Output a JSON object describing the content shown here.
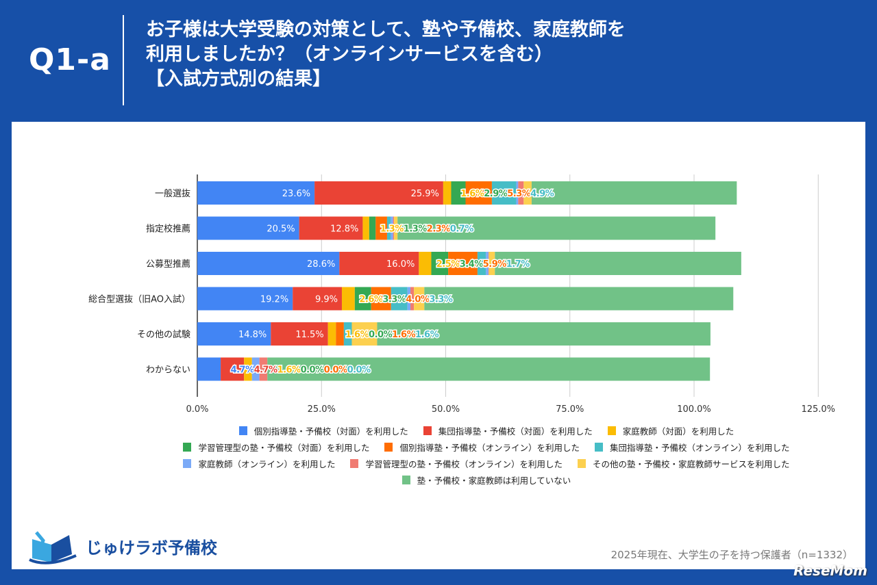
{
  "header": {
    "question_id": "Q1-a",
    "title_lines": [
      "お子様は大学受験の対策として、塾や予備校、家庭教師を",
      "利用しましたか？（オンラインサービスを含む）",
      "【入試方式別の結果】"
    ]
  },
  "chart_data": {
    "type": "bar",
    "orientation": "horizontal",
    "stacked": true,
    "categories": [
      "一般選抜",
      "指定校推薦",
      "公募型推薦",
      "総合型選抜（旧AO入試）",
      "その他の試験",
      "わからない"
    ],
    "xlim": [
      0,
      125
    ],
    "xticks": [
      "0.0%",
      "25.0%",
      "50.0%",
      "75.0%",
      "100.0%",
      "125.0%"
    ],
    "xtick_values": [
      0,
      25,
      50,
      75,
      100,
      125
    ],
    "grid": true,
    "legend_position": "bottom",
    "series": [
      {
        "name": "個別指導塾・予備校（対面）を利用した",
        "color": "#4285f4",
        "values": [
          23.6,
          20.5,
          28.6,
          19.2,
          14.8,
          4.7
        ]
      },
      {
        "name": "集団指導塾・予備校（対面）を利用した",
        "color": "#ea4335",
        "values": [
          25.9,
          12.8,
          16.0,
          9.9,
          11.5,
          4.7
        ]
      },
      {
        "name": "家庭教師（対面）を利用した",
        "color": "#fbbc04",
        "values": [
          1.6,
          1.3,
          2.5,
          2.6,
          1.6,
          1.6
        ]
      },
      {
        "name": "学習管理型の塾・予備校（対面）を利用した",
        "color": "#34a853",
        "values": [
          2.9,
          1.3,
          3.4,
          3.3,
          0.0,
          0.0
        ]
      },
      {
        "name": "個別指導塾・予備校（オンライン）を利用した",
        "color": "#ff6d01",
        "values": [
          5.3,
          2.3,
          5.9,
          4.0,
          1.6,
          0.0
        ]
      },
      {
        "name": "集団指導塾・予備校（オンライン）を利用した",
        "color": "#46bdc6",
        "values": [
          4.9,
          0.7,
          1.7,
          3.3,
          1.6,
          0.0
        ]
      },
      {
        "name": "家庭教師（オンライン）を利用した",
        "color": "#7baaf7",
        "values": [
          0.4,
          0.5,
          0.5,
          0.6,
          0.0,
          1.5
        ]
      },
      {
        "name": "学習管理型の塾・予備校（オンライン）を利用した",
        "color": "#f07b72",
        "values": [
          1.1,
          0.2,
          0.1,
          0.7,
          0.0,
          1.6
        ]
      },
      {
        "name": "その他の塾・予備校・家庭教師サービスを利用した",
        "color": "#fcd04f",
        "values": [
          1.6,
          0.7,
          1.2,
          2.1,
          5.1,
          0.0
        ]
      },
      {
        "name": "塾・予備校・家庭教師は利用していない",
        "color": "#71c287",
        "values": [
          41.3,
          64.0,
          49.6,
          62.2,
          67.1,
          89.1
        ]
      }
    ],
    "data_labels": [
      [
        "23.6%",
        "25.9%",
        "1.6%",
        "2.9%",
        "5.3%",
        "4.9%"
      ],
      [
        "20.5%",
        "12.8%",
        "1.3%",
        "1.3%",
        "2.3%",
        "0.7%"
      ],
      [
        "28.6%",
        "16.0%",
        "2.5%",
        "3.4%",
        "5.9%",
        "1.7%"
      ],
      [
        "19.2%",
        "9.9%",
        "2.6%",
        "3.3%",
        "4.0%",
        "3.3%"
      ],
      [
        "14.8%",
        "11.5%",
        "1.6%",
        "0.0%",
        "1.6%",
        "1.6%"
      ],
      [
        "4.7%",
        "4.7%",
        "1.6%",
        "0.0%",
        "0.0%",
        "0.0%"
      ]
    ]
  },
  "footer": {
    "brand": "じゅけラボ予備校",
    "note": "2025年現在、大学生の子を持つ保護者（n=1332）",
    "watermark": "ReseMom"
  }
}
